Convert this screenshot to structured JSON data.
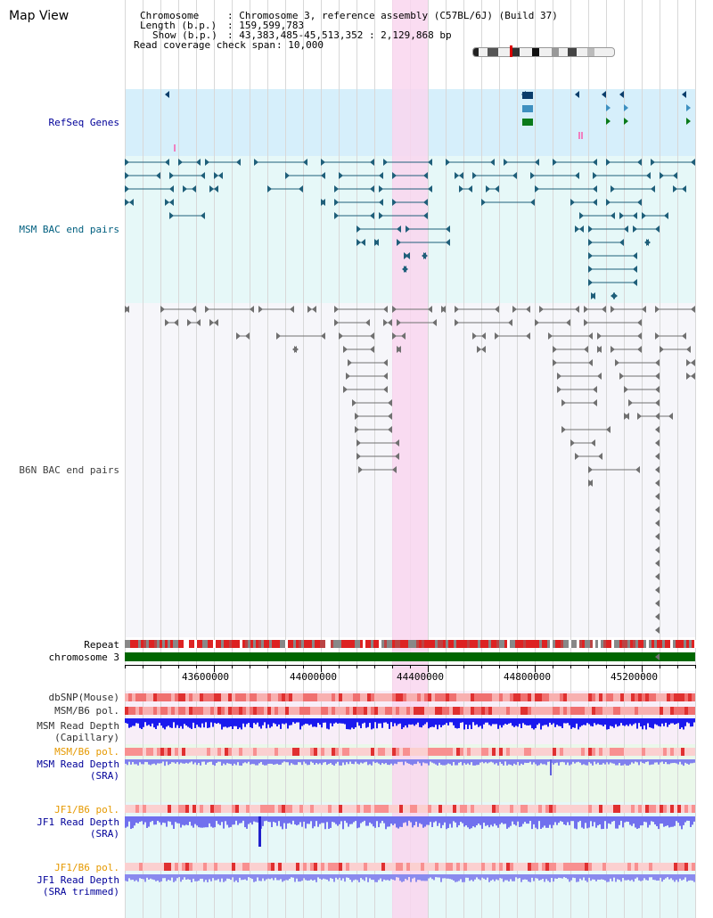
{
  "page": {
    "title": "Map View"
  },
  "info": {
    "chromosome_key": "Chromosome",
    "chromosome_val": ": Chromosome 3, reference assembly (C57BL/6J) (Build 37)",
    "length_key": "Length (b.p.)",
    "length_val": ": 159,599,783",
    "show_key": "Show (b.p.)",
    "show_val": ": 43,383,485-45,513,352 : 2,129,868 bp",
    "coverage_key": "Read coverage check span",
    "coverage_val": ": 10,000"
  },
  "tracks": {
    "refseq": "RefSeq Genes",
    "msm_bac": "MSM BAC end pairs",
    "b6n_bac": "B6N BAC end pairs",
    "repeat": "Repeat",
    "chromosome": "chromosome 3",
    "dbsnp": "dbSNP(Mouse)",
    "msm_b6_pol_1": "MSM/B6 pol.",
    "msm_read_depth_cap_1": "MSM Read Depth",
    "msm_read_depth_cap_2": "(Capillary)",
    "msm_b6_pol_2": "MSM/B6 pol.",
    "msm_read_depth_sra_1": "MSM Read Depth",
    "msm_read_depth_sra_2": "(SRA)",
    "jf1_b6_pol_1": "JF1/B6 pol.",
    "jf1_read_depth_sra_1": "JF1 Read Depth",
    "jf1_read_depth_sra_2": "(SRA)",
    "jf1_b6_pol_2": "JF1/B6 pol.",
    "jf1_read_depth_trim_1": "JF1 Read Depth",
    "jf1_read_depth_trim_2": "(SRA trimmed)"
  },
  "axis": {
    "ticks": [
      "43600000",
      "44000000",
      "44400000",
      "44800000",
      "45200000"
    ]
  },
  "colors": {
    "refseq_bg": "#d6effb",
    "msm_bg": "#e6f8f8",
    "b6n_bg": "#f6f6fa",
    "highlight": "#f9d6ef",
    "chromosome_bar": "#006600",
    "msm_feature": "#1f5f7a",
    "b6n_feature": "#707070",
    "label_blue": "#000099",
    "label_teal": "#005f7f",
    "label_orange": "#e69900"
  }
}
